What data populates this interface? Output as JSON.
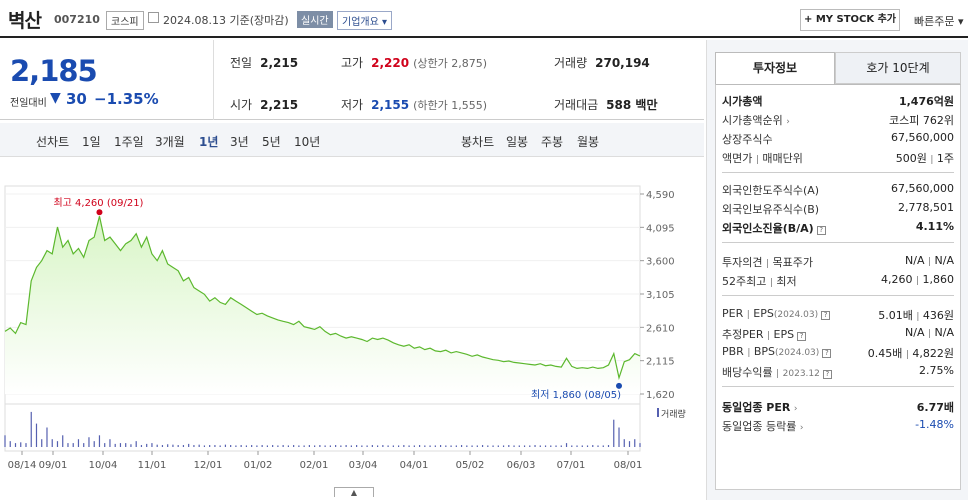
{
  "header": {
    "stock_name": "벽산",
    "stock_code": "007210",
    "market": "코스피",
    "date_label": "2024.08.13 기준(장마감)",
    "live_label": "실시간",
    "company_overview": "기업개요",
    "mystock_button": "+ MY STOCK 추가",
    "quick_order": "빠른주문"
  },
  "summary": {
    "price": "2,185",
    "change_label": "전일대비",
    "change_arrow": "▼",
    "change_value": "30",
    "change_percent": "−1.35%",
    "prev_close_label": "전일",
    "prev_close": "2,215",
    "open_label": "시가",
    "open": "2,215",
    "high_label": "고가",
    "high": "2,220",
    "upper_limit": "(상한가 2,875)",
    "low_label": "저가",
    "low": "2,155",
    "lower_limit": "(하한가 1,555)",
    "volume_label": "거래량",
    "volume": "270,194",
    "amount_label": "거래대금",
    "amount": "588 백만"
  },
  "period_bar": {
    "line_chart_label": "선차트",
    "periods": [
      "1일",
      "1주일",
      "3개월",
      "1년",
      "3년",
      "5년",
      "10년"
    ],
    "selected_period": "1년",
    "candle_label": "봉차트",
    "candle_periods": [
      "일봉",
      "주봉",
      "월봉"
    ]
  },
  "chart_data": {
    "type": "area",
    "x_tick_labels": [
      "08/14",
      "09/01",
      "10/04",
      "11/01",
      "12/01",
      "01/02",
      "02/01",
      "03/04",
      "04/01",
      "05/02",
      "06/03",
      "07/01",
      "08/01"
    ],
    "y_tick_labels": [
      "4,590",
      "4,095",
      "3,600",
      "3,105",
      "2,610",
      "2,115",
      "1,620"
    ],
    "ylim": [
      1620,
      4590
    ],
    "annotations": {
      "high": "최고 4,260 (09/21)",
      "low": "최저 1,860 (08/05)"
    },
    "volume_legend": "거래량",
    "series": [
      {
        "values": [
          2550,
          2600,
          2520,
          2680,
          2650,
          3300,
          3500,
          3600,
          3750,
          3700,
          4100,
          3800,
          3900,
          3700,
          3780,
          3650,
          3900,
          3950,
          4260,
          3900,
          3950,
          3850,
          3750,
          3850,
          3900,
          4000,
          3800,
          3950,
          3700,
          3600,
          3750,
          3550,
          3500,
          3450,
          3300,
          3350,
          3200,
          3150,
          3100,
          3000,
          3050,
          2980,
          2950,
          3050,
          3000,
          2950,
          2900,
          2850,
          2800,
          2820,
          2780,
          2750,
          2720,
          2700,
          2680,
          2650,
          2700,
          2620,
          2600,
          2580,
          2620,
          2550,
          2500,
          2520,
          2480,
          2450,
          2470,
          2450,
          2430,
          2400,
          2450,
          2430,
          2450,
          2420,
          2380,
          2350,
          2330,
          2350,
          2300,
          2320,
          2280,
          2300,
          2260,
          2250,
          2270,
          2230,
          2250,
          2230,
          2210,
          2180,
          2200,
          2170,
          2150,
          2130,
          2120,
          2100,
          2110,
          2090,
          2080,
          2070,
          2060,
          2050,
          2070,
          2040,
          2050,
          2030,
          2020,
          2150,
          2030,
          2000,
          2010,
          2000,
          2020,
          2000,
          2010,
          2050,
          2220,
          1860,
          2100,
          2130,
          2220,
          2185
        ]
      }
    ],
    "volume": [
      0.3,
      0.15,
      0.1,
      0.12,
      0.1,
      0.9,
      0.6,
      0.2,
      0.5,
      0.2,
      0.15,
      0.3,
      0.1,
      0.1,
      0.2,
      0.1,
      0.25,
      0.15,
      0.3,
      0.1,
      0.2,
      0.08,
      0.1,
      0.1,
      0.07,
      0.15,
      0.05,
      0.08,
      0.1,
      0.06,
      0.05,
      0.07,
      0.06,
      0.05,
      0.05,
      0.08,
      0.05,
      0.06,
      0.04,
      0.05,
      0.05,
      0.04,
      0.06,
      0.05,
      0.04,
      0.05,
      0.04,
      0.05,
      0.04,
      0.05,
      0.04,
      0.05,
      0.04,
      0.05,
      0.04,
      0.05,
      0.04,
      0.04,
      0.05,
      0.04,
      0.05,
      0.04,
      0.04,
      0.05,
      0.04,
      0.05,
      0.04,
      0.05,
      0.04,
      0.04,
      0.05,
      0.04,
      0.05,
      0.04,
      0.04,
      0.04,
      0.05,
      0.04,
      0.04,
      0.05,
      0.04,
      0.04,
      0.04,
      0.05,
      0.04,
      0.04,
      0.04,
      0.05,
      0.04,
      0.04,
      0.04,
      0.05,
      0.04,
      0.04,
      0.04,
      0.04,
      0.05,
      0.04,
      0.04,
      0.04,
      0.04,
      0.05,
      0.04,
      0.04,
      0.04,
      0.04,
      0.04,
      0.1,
      0.04,
      0.04,
      0.04,
      0.04,
      0.05,
      0.04,
      0.04,
      0.05,
      0.7,
      0.5,
      0.2,
      0.15,
      0.2,
      0.1
    ]
  },
  "invest_tabs": [
    "투자정보",
    "호가 10단계"
  ],
  "invest_info": {
    "market_cap_label": "시가총액",
    "market_cap": "1,476억원",
    "market_cap_rank_label": "시가총액순위",
    "market_cap_rank": "코스피 762위",
    "listed_shares_label": "상장주식수",
    "listed_shares": "67,560,000",
    "face_value_label": "액면가",
    "trade_unit_label": "매매단위",
    "face_value": "500원",
    "trade_unit": "1주",
    "foreign_limit_label": "외국인한도주식수(A)",
    "foreign_limit": "67,560,000",
    "foreign_hold_label": "외국인보유주식수(B)",
    "foreign_hold": "2,778,501",
    "foreign_ratio_label": "외국인소진율(B/A)",
    "foreign_ratio": "4.11%",
    "opinion_label": "투자의견",
    "target_label": "목표주가",
    "opinion": "N/A",
    "target": "N/A",
    "week52_label": "52주최고",
    "week52_low_label": "최저",
    "week52_high": "4,260",
    "week52_low": "1,860",
    "per_label": "PER",
    "eps_label": "EPS",
    "eps_period": "(2024.03)",
    "per": "5.01배",
    "eps": "436원",
    "est_per_label": "추정PER",
    "est_eps_label": "EPS",
    "est_per": "N/A",
    "est_eps": "N/A",
    "pbr_label": "PBR",
    "bps_label": "BPS",
    "bps_period": "(2024.03)",
    "pbr": "0.45배",
    "bps": "4,822원",
    "dividend_label": "배당수익률",
    "dividend_period": "2023.12",
    "dividend": "2.75%",
    "sector_per_label": "동일업종 PER",
    "sector_per": "6.77배",
    "sector_change_label": "동일업종 등락률",
    "sector_change": "-1.48%"
  },
  "colors": {
    "up": "#d0021b",
    "down": "#1a4bb0",
    "line": "#5cb82e",
    "fill": "#d8f5c6"
  }
}
